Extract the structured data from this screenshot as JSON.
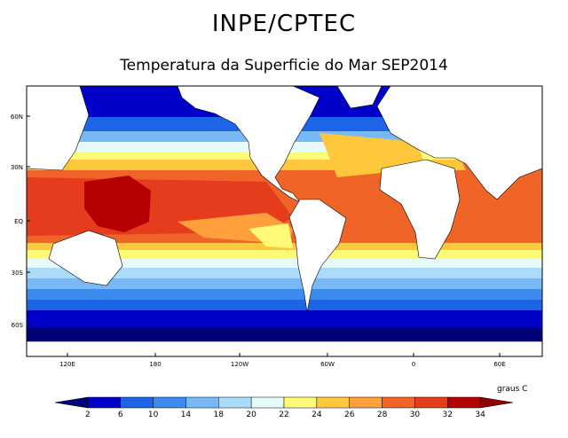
{
  "title": "INPE/CPTEC",
  "subtitle": "Temperatura da Superficie do Mar SEP2014",
  "map": {
    "lat_labels": [
      "60N",
      "30N",
      "EQ",
      "30S",
      "60S"
    ],
    "lon_labels": [
      "120E",
      "180",
      "120W",
      "60W",
      "0",
      "60E"
    ]
  },
  "legend": {
    "units": "graus C",
    "ticks": [
      "2",
      "6",
      "10",
      "14",
      "18",
      "20",
      "22",
      "24",
      "26",
      "28",
      "30",
      "32",
      "34"
    ],
    "colors": [
      "#00007a",
      "#0000c8",
      "#1e64e6",
      "#3c8cf0",
      "#78b9f5",
      "#aadcfa",
      "#e6fafa",
      "#fffa78",
      "#ffc83c",
      "#ffa03c",
      "#f06428",
      "#e63c1e",
      "#b40000",
      "#8c0000"
    ]
  },
  "colors": {
    "land": "#ffffff",
    "ice": "#00007a"
  }
}
